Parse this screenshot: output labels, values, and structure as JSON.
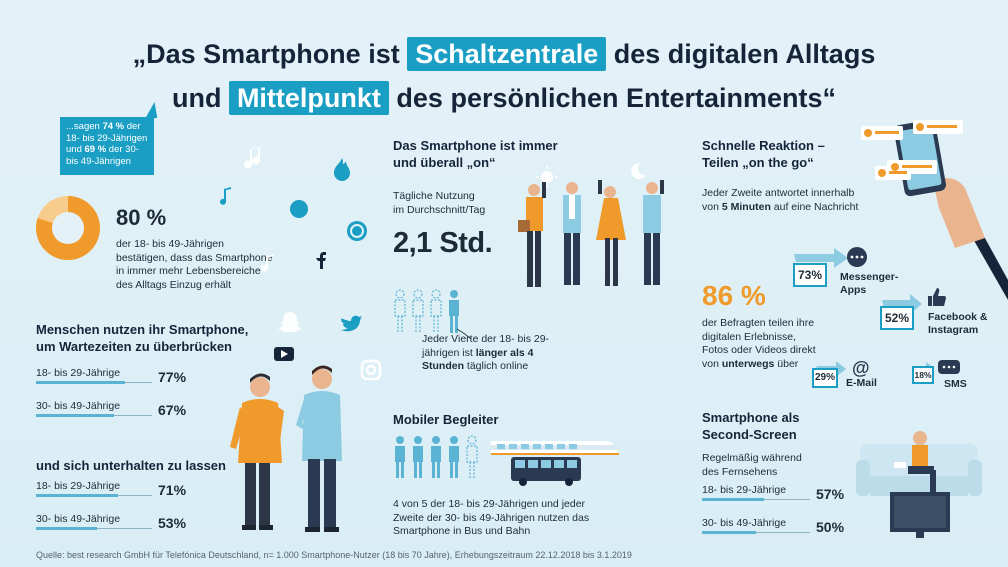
{
  "title": {
    "line1_pre": "„Das Smartphone ist ",
    "line1_hl": "Schaltzentrale",
    "line1_post": " des digitalen Alltags",
    "line2_pre": "und ",
    "line2_hl": "Mittelpunkt",
    "line2_post": " des persönlichen Entertainments“"
  },
  "bubble": {
    "p1": "...sagen ",
    "b1": "74 %",
    "p2": " der 18- bis 29-Jährigen und ",
    "b2": "69 %",
    "p3": " der 30- bis 49-Jährigen"
  },
  "stat80": {
    "value": "80 %",
    "fraction": 0.8,
    "text": "der 18- bis 49-Jährigen bestätigen, dass das Smartphone in immer mehr Lebensbereiche des Alltags Einzug erhält"
  },
  "waiting": {
    "heading1": "Menschen nutzen ihr Smartphone,",
    "heading2": "um Wartezeiten zu überbrücken",
    "rows": [
      {
        "label": "18- bis 29-Jährige",
        "value": "77%",
        "fraction": 0.77
      },
      {
        "label": "30- bis 49-Jährige",
        "value": "67%",
        "fraction": 0.67
      }
    ]
  },
  "entertain": {
    "heading": "und sich unterhalten zu lassen",
    "rows": [
      {
        "label": "18- bis 29-Jährige",
        "value": "71%",
        "fraction": 0.71
      },
      {
        "label": "30- bis 49-Jährige",
        "value": "53%",
        "fraction": 0.53
      }
    ]
  },
  "always_on": {
    "heading1": "Das Smartphone ist immer",
    "heading2": "und überall „on“",
    "sub1": "Tägliche Nutzung",
    "sub2": "im Durchschnitt/Tag",
    "value": "2,1 Std.",
    "quarter_p1": "Jeder Vierte der 18- bis 29-jährigen ist ",
    "quarter_b": "länger als 4 Stunden",
    "quarter_p2": " täglich online"
  },
  "mobile": {
    "heading": "Mobiler Begleiter",
    "text": "4 von 5 der 18- bis 29-Jährigen und jeder Zweite der 30- bis 49-Jährigen nutzen das Smartphone in Bus und Bahn"
  },
  "reaction": {
    "heading1": "Schnelle Reaktion –",
    "heading2": "Teilen „on the go“",
    "text_p1": "Jeder Zweite antwortet innerhalb von ",
    "text_b": "5 Minuten",
    "text_p2": " auf eine Nachricht"
  },
  "share": {
    "value": "86 %",
    "text_p1": "der Befragten teilen ihre digitalen Erlebnisse, Fotos oder Videos direkt von ",
    "text_b": "unterwegs",
    "text_p2": " über",
    "channels": [
      {
        "pct": "73%",
        "label1": "Messenger-",
        "label2": "Apps"
      },
      {
        "pct": "52%",
        "label1": "Facebook &",
        "label2": "Instagram"
      },
      {
        "pct": "29%",
        "label1": "E-Mail",
        "label2": ""
      },
      {
        "pct": "18%",
        "label1": "SMS",
        "label2": ""
      }
    ]
  },
  "second_screen": {
    "heading1": "Smartphone als",
    "heading2": "Second-Screen",
    "sub1": "Regelmäßig während",
    "sub2": "des Fernsehens",
    "rows": [
      {
        "label": "18- bis 29-Jährige",
        "value": "57%",
        "fraction": 0.57
      },
      {
        "label": "30- bis 49-Jährige",
        "value": "50%",
        "fraction": 0.5
      }
    ]
  },
  "source": "Quelle: best research GmbH für Telefónica Deutschland, n= 1.000 Smartphone-Nutzer (18 bis 70 Jahre), Erhebungszeitraum 22.12.2018 bis 3.1.2019",
  "colors": {
    "accent": "#1a9ec4",
    "orange": "#ef9a2a",
    "dark": "#16243a"
  },
  "icons": [
    "music-note-icon",
    "messenger-icon",
    "whatsapp-icon",
    "facebook-icon",
    "twitter-icon",
    "youtube-icon",
    "instagram-icon",
    "snapchat-icon",
    "tinder-flame-icon",
    "sun-icon",
    "moon-icon",
    "chat-bubble-icon",
    "like-icon",
    "at-sign-icon",
    "sms-icon"
  ]
}
